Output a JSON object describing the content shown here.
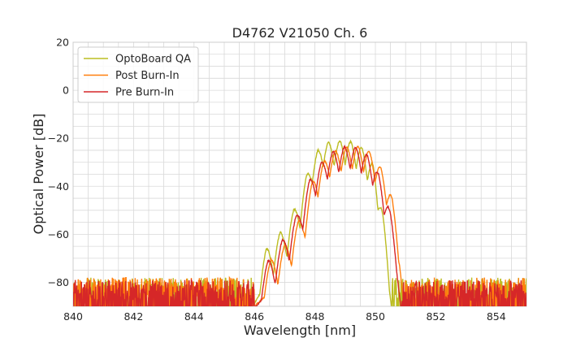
{
  "chart_data": {
    "type": "line",
    "title": "D4762 V21050 Ch. 6",
    "xlabel": "Wavelength [nm]",
    "ylabel": "Optical Power [dB]",
    "xlim": [
      840,
      855
    ],
    "ylim": [
      -90,
      20
    ],
    "xticks": [
      840,
      842,
      844,
      846,
      848,
      850,
      852,
      854
    ],
    "xtick_labels": [
      "840",
      "842",
      "844",
      "846",
      "848",
      "850",
      "852",
      "854"
    ],
    "yticks": [
      20,
      0,
      -20,
      -40,
      -60,
      -80
    ],
    "ytick_labels": [
      "20",
      "0",
      "−20",
      "−40",
      "−60",
      "−80"
    ],
    "grid": true,
    "minor_grid_step_x": 0.5,
    "minor_grid_step_y": 5,
    "legend_position": "top-left",
    "series": [
      {
        "name": "OptoBoard QA",
        "color": "#bcbd22",
        "noise_floor": -77,
        "signal_range": [
          845.9,
          850.55
        ],
        "envelope": [
          [
            845.9,
            -77
          ],
          [
            846.4,
            -66
          ],
          [
            847.0,
            -57
          ],
          [
            847.5,
            -45
          ],
          [
            847.9,
            -28
          ],
          [
            848.3,
            -22
          ],
          [
            848.7,
            -21
          ],
          [
            849.1,
            -21
          ],
          [
            849.5,
            -23
          ],
          [
            849.9,
            -30
          ],
          [
            850.2,
            -48
          ],
          [
            850.55,
            -77
          ]
        ],
        "peaks": [
          846.4,
          846.85,
          847.3,
          847.72,
          848.1,
          848.45,
          848.82,
          849.18,
          849.55,
          849.92,
          850.25
        ],
        "dip_depth": 14
      },
      {
        "name": "Post Burn-In",
        "color": "#ff7f0e",
        "noise_floor": -77,
        "signal_range": [
          846.0,
          850.95
        ],
        "envelope": [
          [
            846.0,
            -77
          ],
          [
            846.6,
            -70
          ],
          [
            847.1,
            -63
          ],
          [
            847.6,
            -51
          ],
          [
            848.0,
            -35
          ],
          [
            848.5,
            -26
          ],
          [
            848.9,
            -24
          ],
          [
            849.3,
            -23
          ],
          [
            849.7,
            -24
          ],
          [
            850.1,
            -30
          ],
          [
            850.5,
            -42
          ],
          [
            850.8,
            -60
          ],
          [
            850.95,
            -77
          ]
        ],
        "peaks": [
          846.55,
          847.0,
          847.45,
          847.9,
          848.3,
          848.68,
          849.05,
          849.42,
          849.8,
          850.18,
          850.55
        ],
        "dip_depth": 13
      },
      {
        "name": "Pre Burn-In",
        "color": "#d62728",
        "noise_floor": -78,
        "signal_range": [
          846.0,
          850.85
        ],
        "envelope": [
          [
            846.0,
            -78
          ],
          [
            846.4,
            -72
          ],
          [
            846.9,
            -63
          ],
          [
            847.4,
            -52
          ],
          [
            847.9,
            -35
          ],
          [
            848.4,
            -27
          ],
          [
            848.8,
            -24
          ],
          [
            849.2,
            -23
          ],
          [
            849.6,
            -25
          ],
          [
            850.0,
            -31
          ],
          [
            850.4,
            -46
          ],
          [
            850.7,
            -62
          ],
          [
            850.85,
            -78
          ]
        ],
        "peaks": [
          846.45,
          846.92,
          847.38,
          847.82,
          848.22,
          848.6,
          848.98,
          849.35,
          849.72,
          850.1,
          850.48
        ],
        "dip_depth": 13
      }
    ]
  }
}
